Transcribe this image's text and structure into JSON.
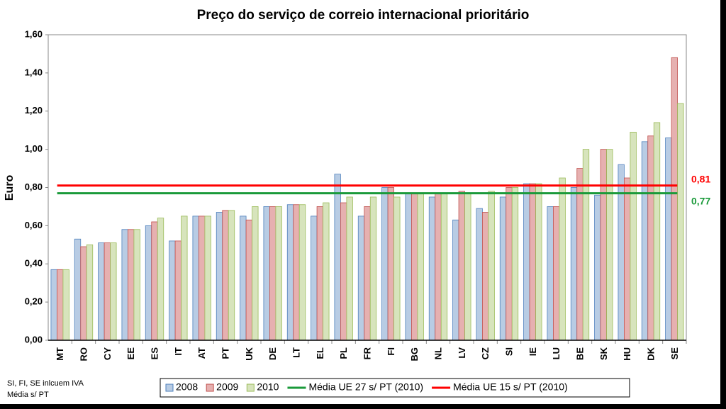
{
  "chart_data": {
    "type": "bar",
    "title": "Preço do serviço de correio internacional prioritário",
    "y_label": "Euro",
    "notes": [
      "SI, FI, SE  inlcuem  IVA",
      "Média s/  PT"
    ],
    "categories": [
      "MT",
      "RO",
      "CY",
      "EE",
      "ES",
      "IT",
      "AT",
      "PT",
      "UK",
      "DE",
      "LT",
      "EL",
      "PL",
      "FR",
      "FI",
      "BG",
      "NL",
      "LV",
      "CZ",
      "SI",
      "IE",
      "LU",
      "BE",
      "SK",
      "HU",
      "DK",
      "SE"
    ],
    "series": [
      {
        "name": "2008",
        "color": "#b8cce4",
        "values": [
          0.37,
          0.53,
          0.51,
          0.58,
          0.6,
          0.52,
          0.65,
          0.67,
          0.65,
          0.7,
          0.71,
          0.65,
          0.87,
          0.65,
          0.8,
          0.77,
          0.75,
          0.63,
          0.69,
          0.75,
          0.82,
          0.7,
          0.8,
          0.76,
          0.92,
          1.04,
          1.06
        ]
      },
      {
        "name": "2009",
        "color": "#e6b0b0",
        "values": [
          0.37,
          0.49,
          0.51,
          0.58,
          0.62,
          0.52,
          0.65,
          0.68,
          0.63,
          0.7,
          0.71,
          0.7,
          0.72,
          0.7,
          0.8,
          0.77,
          0.77,
          0.78,
          0.67,
          0.8,
          0.82,
          0.7,
          0.9,
          1.0,
          0.85,
          1.07,
          1.48
        ]
      },
      {
        "name": "2010",
        "color": "#d7e4bc",
        "values": [
          0.37,
          0.5,
          0.51,
          0.58,
          0.64,
          0.65,
          0.65,
          0.68,
          0.7,
          0.7,
          0.71,
          0.72,
          0.75,
          0.75,
          0.75,
          0.77,
          0.77,
          0.77,
          0.78,
          0.8,
          0.82,
          0.85,
          1.0,
          1.0,
          1.09,
          1.14,
          1.24
        ]
      }
    ],
    "reference_lines": [
      {
        "name": "Média UE 27 s/ PT (2010)",
        "color": "#1a9a3a",
        "value": 0.77,
        "value_label": "0,77"
      },
      {
        "name": "Média UE 15 s/ PT (2010)",
        "color": "#ff0000",
        "value": 0.81,
        "value_label": "0,81"
      }
    ],
    "ylim": [
      0,
      1.6
    ],
    "yticks": [
      {
        "value": 0,
        "label": "0,00"
      },
      {
        "value": 0.2,
        "label": "0,20"
      },
      {
        "value": 0.4,
        "label": "0,40"
      },
      {
        "value": 0.6,
        "label": "0,60"
      },
      {
        "value": 0.8,
        "label": "0,80"
      },
      {
        "value": 1.0,
        "label": "1,00"
      },
      {
        "value": 1.2,
        "label": "1,20"
      },
      {
        "value": 1.4,
        "label": "1,40"
      },
      {
        "value": 1.6,
        "label": "1,60"
      }
    ]
  }
}
